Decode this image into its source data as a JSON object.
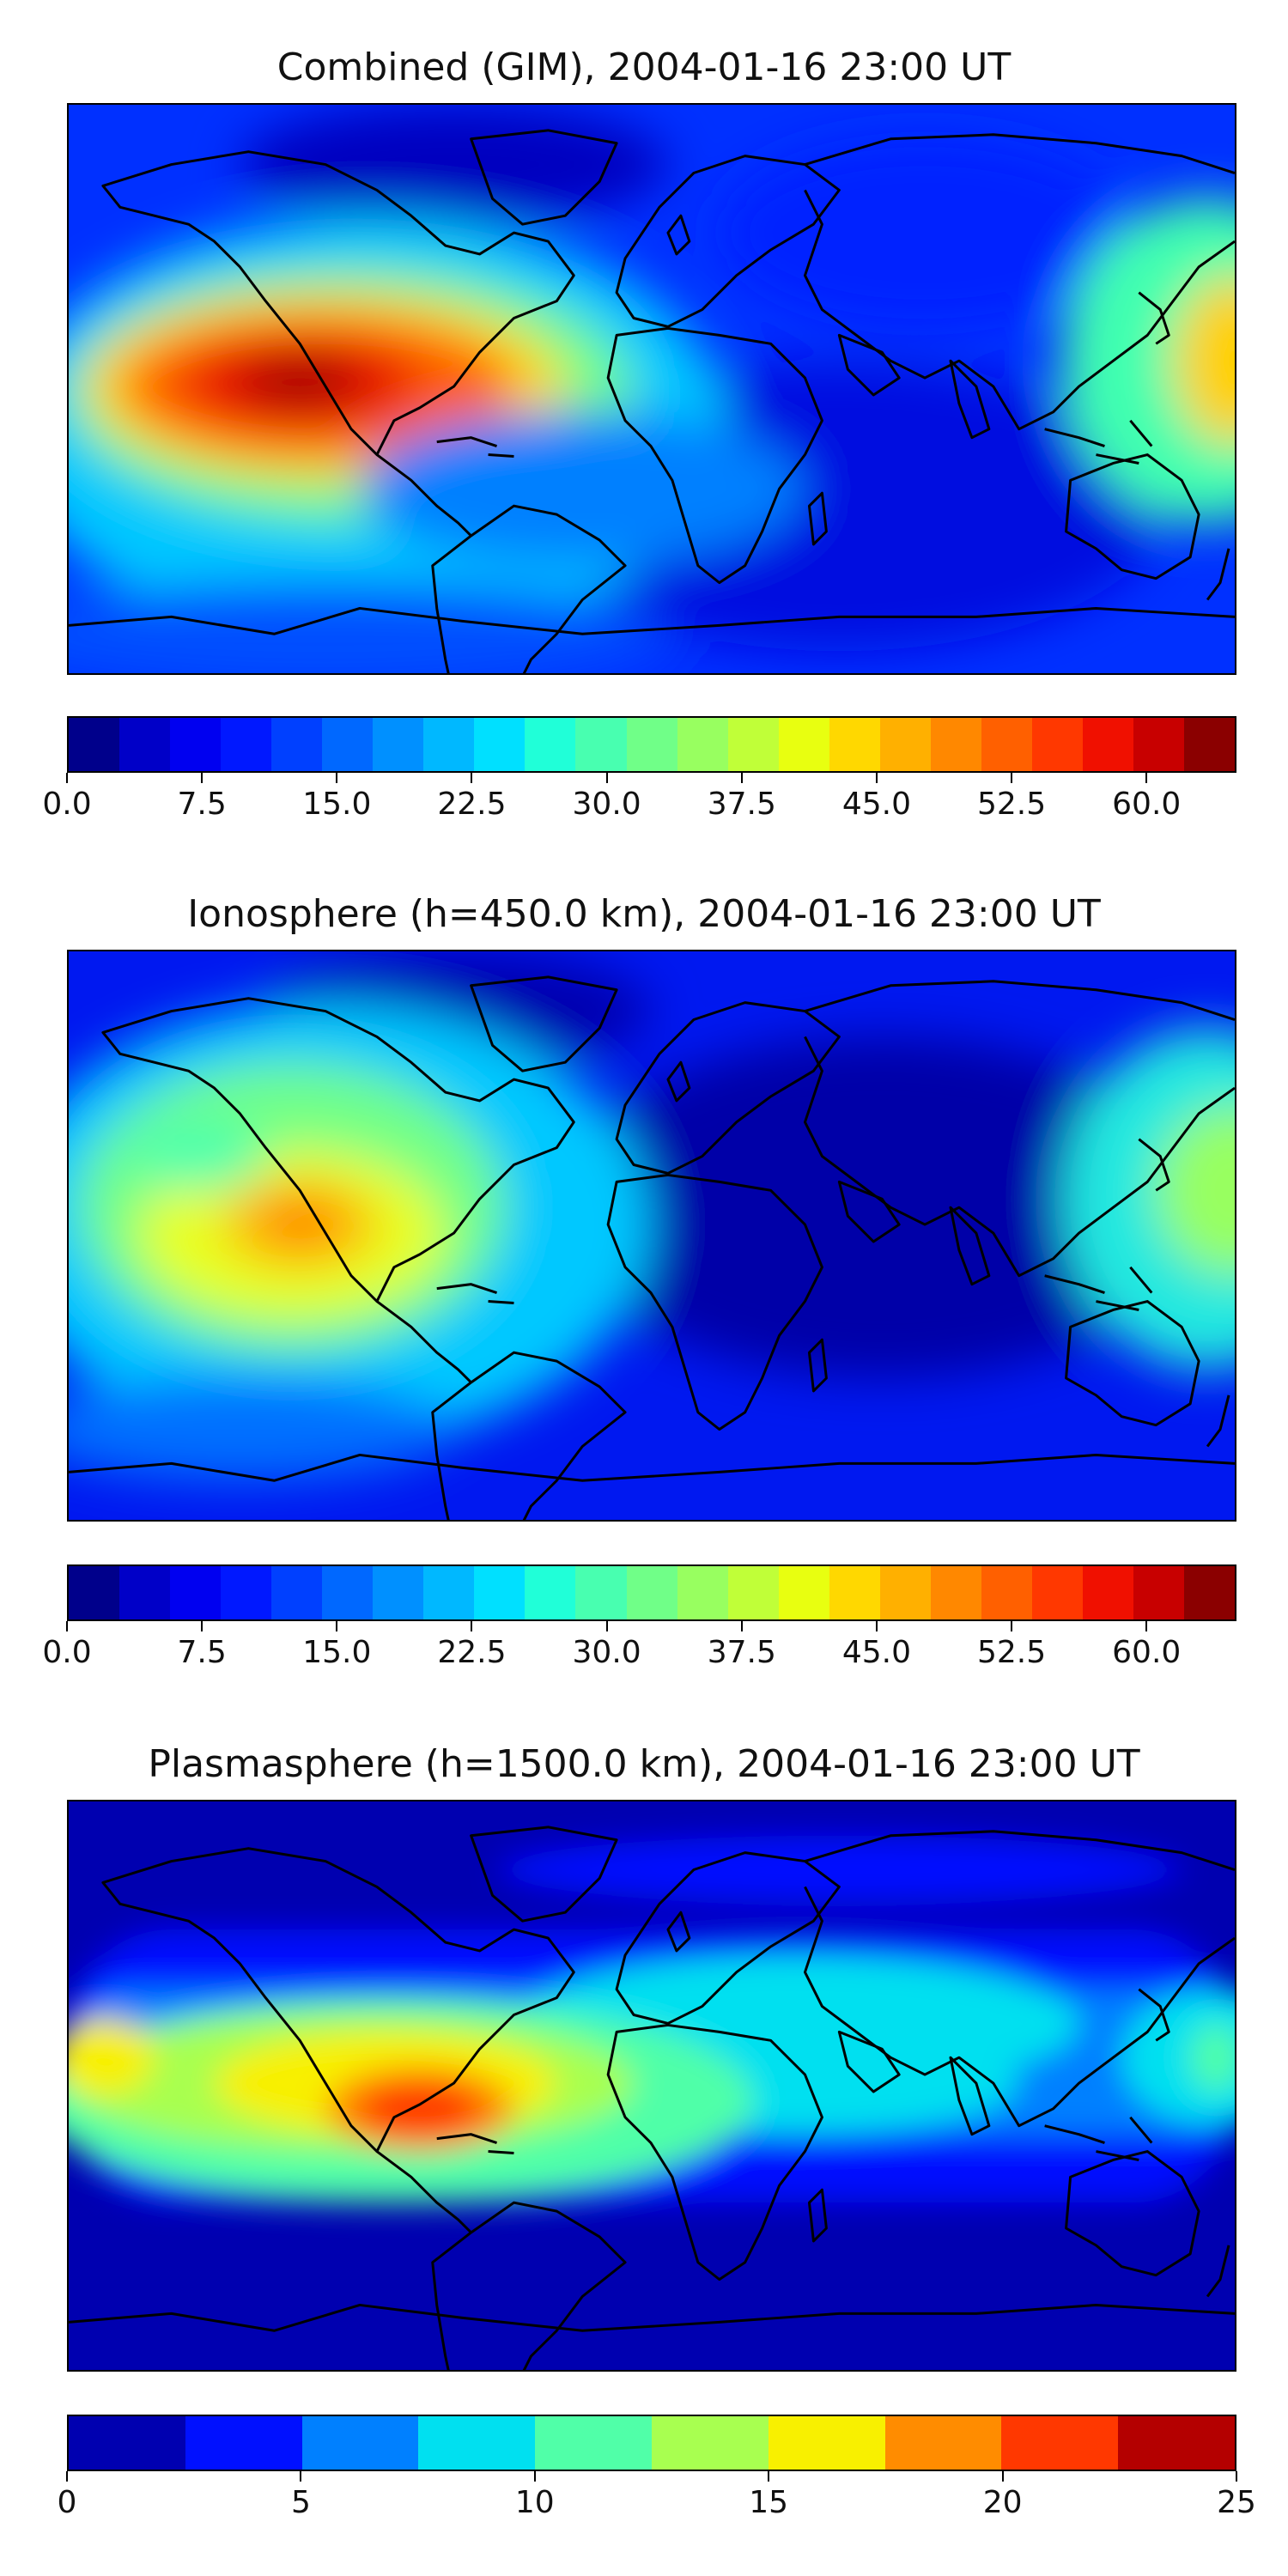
{
  "panels": [
    {
      "title": "Combined (GIM), 2004-01-16 23:00 UT",
      "colorbar": {
        "min": 0,
        "max": 65,
        "colors": [
          "#00008b",
          "#0000c8",
          "#0000f0",
          "#0018ff",
          "#0040ff",
          "#0068ff",
          "#0090ff",
          "#00b8ff",
          "#00e0ff",
          "#20ffd8",
          "#48ffb0",
          "#70ff88",
          "#98ff60",
          "#c0ff38",
          "#e8ff10",
          "#ffd800",
          "#ffb000",
          "#ff8800",
          "#ff6000",
          "#ff3800",
          "#f01000",
          "#c80000",
          "#8b0000"
        ],
        "ticks": [
          "0.0",
          "7.5",
          "15.0",
          "22.5",
          "30.0",
          "37.5",
          "45.0",
          "52.5",
          "60.0"
        ],
        "tick_values": [
          0,
          7.5,
          15,
          22.5,
          30,
          37.5,
          45,
          52.5,
          60
        ]
      }
    },
    {
      "title": "Ionosphere  (h=450.0 km), 2004-01-16 23:00 UT",
      "colorbar": {
        "min": 0,
        "max": 65,
        "colors": [
          "#00008b",
          "#0000c8",
          "#0000f0",
          "#0018ff",
          "#0040ff",
          "#0068ff",
          "#0090ff",
          "#00b8ff",
          "#00e0ff",
          "#20ffd8",
          "#48ffb0",
          "#70ff88",
          "#98ff60",
          "#c0ff38",
          "#e8ff10",
          "#ffd800",
          "#ffb000",
          "#ff8800",
          "#ff6000",
          "#ff3800",
          "#f01000",
          "#c80000",
          "#8b0000"
        ],
        "ticks": [
          "0.0",
          "7.5",
          "15.0",
          "22.5",
          "30.0",
          "37.5",
          "45.0",
          "52.5",
          "60.0"
        ],
        "tick_values": [
          0,
          7.5,
          15,
          22.5,
          30,
          37.5,
          45,
          52.5,
          60
        ]
      }
    },
    {
      "title": "Plasmasphere (h=1500.0 km), 2004-01-16 23:00 UT",
      "colorbar": {
        "min": 0,
        "max": 25,
        "colors": [
          "#0000b0",
          "#0010ff",
          "#0080ff",
          "#00e0f0",
          "#50ffa8",
          "#a8ff50",
          "#f8f000",
          "#ff8c00",
          "#ff3800",
          "#b40000"
        ],
        "ticks": [
          "0",
          "5",
          "10",
          "15",
          "20",
          "25"
        ],
        "tick_values": [
          0,
          5,
          10,
          15,
          20,
          25
        ]
      }
    }
  ]
}
